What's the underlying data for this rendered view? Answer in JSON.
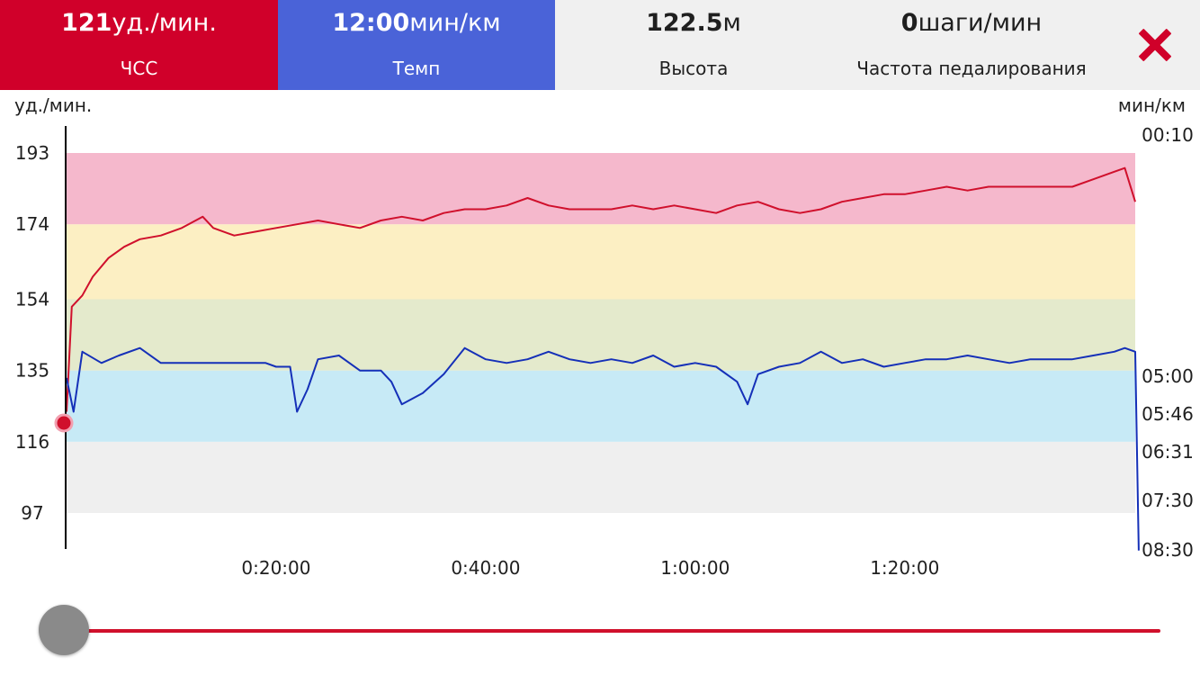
{
  "header": {
    "metrics": [
      {
        "value": "121",
        "unit": "уд./мин.",
        "label": "ЧСС"
      },
      {
        "value": "12:00",
        "unit": "мин/км",
        "label": "Темп"
      },
      {
        "value": "122.5",
        "unit": "м",
        "label": "Высота"
      },
      {
        "value": "0",
        "unit": "шаги/мин",
        "label": "Частота педалирования"
      }
    ],
    "close_icon": "close-x-icon"
  },
  "colors": {
    "hr_tab": "#d0002a",
    "pace_tab": "#4a63d8",
    "header_bg": "#f0f0f0",
    "hr_line": "#d0102c",
    "pace_line": "#1530b8",
    "zones": [
      "#efefef",
      "#c7eaf6",
      "#e4eacc",
      "#fcefc3",
      "#f5b8cc"
    ],
    "slider": "#d0102c"
  },
  "slider": {
    "position": 0
  },
  "chart_data": {
    "type": "line",
    "left_axis": {
      "label": "уд./мин.",
      "ticks": [
        193,
        174,
        154,
        135,
        116,
        97
      ]
    },
    "right_axis": {
      "label": "мин/км",
      "ticks": [
        "00:10",
        "05:00",
        "05:46",
        "06:31",
        "07:30",
        "08:30"
      ]
    },
    "x_axis": {
      "ticks": [
        "0:20:00",
        "0:40:00",
        "1:00:00",
        "1:20:00"
      ],
      "tick_seconds": [
        1200,
        2400,
        3600,
        4800
      ],
      "range_seconds": [
        0,
        6120
      ]
    },
    "hr_zones": [
      [
        97,
        116
      ],
      [
        116,
        135
      ],
      [
        135,
        154
      ],
      [
        154,
        174
      ],
      [
        174,
        193
      ]
    ],
    "series": [
      {
        "kind": "heart-rate",
        "points": [
          [
            0,
            124
          ],
          [
            30,
            152
          ],
          [
            90,
            155
          ],
          [
            150,
            160
          ],
          [
            240,
            165
          ],
          [
            330,
            168
          ],
          [
            420,
            170
          ],
          [
            540,
            171
          ],
          [
            660,
            173
          ],
          [
            780,
            176
          ],
          [
            840,
            173
          ],
          [
            960,
            171
          ],
          [
            1080,
            172
          ],
          [
            1200,
            173
          ],
          [
            1320,
            174
          ],
          [
            1440,
            175
          ],
          [
            1560,
            174
          ],
          [
            1680,
            173
          ],
          [
            1800,
            175
          ],
          [
            1920,
            176
          ],
          [
            2040,
            175
          ],
          [
            2160,
            177
          ],
          [
            2280,
            178
          ],
          [
            2400,
            178
          ],
          [
            2520,
            179
          ],
          [
            2640,
            181
          ],
          [
            2760,
            179
          ],
          [
            2880,
            178
          ],
          [
            3000,
            178
          ],
          [
            3120,
            178
          ],
          [
            3240,
            179
          ],
          [
            3360,
            178
          ],
          [
            3480,
            179
          ],
          [
            3600,
            178
          ],
          [
            3720,
            177
          ],
          [
            3840,
            179
          ],
          [
            3960,
            180
          ],
          [
            4080,
            178
          ],
          [
            4200,
            177
          ],
          [
            4320,
            178
          ],
          [
            4440,
            180
          ],
          [
            4560,
            181
          ],
          [
            4680,
            182
          ],
          [
            4800,
            182
          ],
          [
            4920,
            183
          ],
          [
            5040,
            184
          ],
          [
            5160,
            183
          ],
          [
            5280,
            184
          ],
          [
            5400,
            184
          ],
          [
            5520,
            184
          ],
          [
            5640,
            184
          ],
          [
            5760,
            184
          ],
          [
            5880,
            186
          ],
          [
            6000,
            188
          ],
          [
            6060,
            189
          ],
          [
            6120,
            180
          ]
        ]
      },
      {
        "kind": "pace",
        "points": [
          [
            0,
            133
          ],
          [
            40,
            124
          ],
          [
            90,
            140
          ],
          [
            200,
            137
          ],
          [
            300,
            139
          ],
          [
            420,
            141
          ],
          [
            540,
            137
          ],
          [
            660,
            137
          ],
          [
            780,
            137
          ],
          [
            900,
            137
          ],
          [
            1020,
            137
          ],
          [
            1140,
            137
          ],
          [
            1200,
            136
          ],
          [
            1280,
            136
          ],
          [
            1320,
            124
          ],
          [
            1380,
            130
          ],
          [
            1440,
            138
          ],
          [
            1560,
            139
          ],
          [
            1680,
            135
          ],
          [
            1800,
            135
          ],
          [
            1860,
            132
          ],
          [
            1920,
            126
          ],
          [
            2040,
            129
          ],
          [
            2160,
            134
          ],
          [
            2280,
            141
          ],
          [
            2400,
            138
          ],
          [
            2520,
            137
          ],
          [
            2640,
            138
          ],
          [
            2760,
            140
          ],
          [
            2880,
            138
          ],
          [
            3000,
            137
          ],
          [
            3120,
            138
          ],
          [
            3240,
            137
          ],
          [
            3360,
            139
          ],
          [
            3480,
            136
          ],
          [
            3600,
            137
          ],
          [
            3720,
            136
          ],
          [
            3840,
            132
          ],
          [
            3900,
            126
          ],
          [
            3960,
            134
          ],
          [
            4080,
            136
          ],
          [
            4200,
            137
          ],
          [
            4320,
            140
          ],
          [
            4440,
            137
          ],
          [
            4560,
            138
          ],
          [
            4680,
            136
          ],
          [
            4800,
            137
          ],
          [
            4920,
            138
          ],
          [
            5040,
            138
          ],
          [
            5160,
            139
          ],
          [
            5280,
            138
          ],
          [
            5400,
            137
          ],
          [
            5520,
            138
          ],
          [
            5640,
            138
          ],
          [
            5760,
            138
          ],
          [
            5880,
            139
          ],
          [
            6000,
            140
          ],
          [
            6060,
            141
          ],
          [
            6120,
            140
          ],
          [
            6140,
            87
          ]
        ]
      }
    ],
    "current_hr": 121
  }
}
